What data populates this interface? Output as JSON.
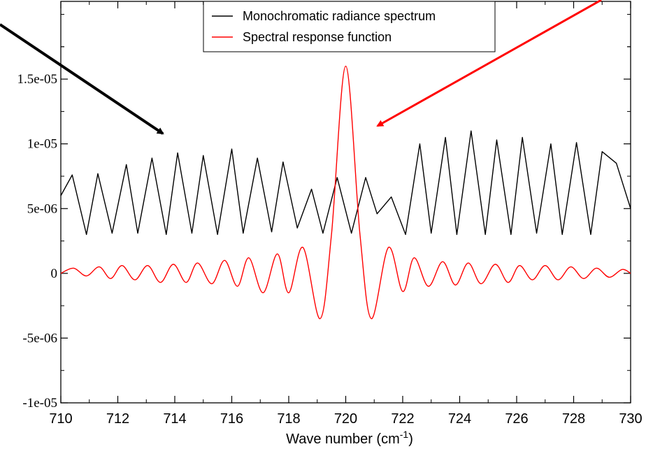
{
  "chart_data": {
    "type": "line",
    "title": "",
    "xlabel": "Wave number (cm",
    "xlabel_superscript": "-1",
    "xlabel_suffix": ")",
    "ylabel": "",
    "xlim": [
      710,
      730
    ],
    "ylim": [
      -1e-05,
      2.1e-05
    ],
    "x_ticks": [
      710,
      712,
      714,
      716,
      718,
      720,
      722,
      724,
      726,
      728,
      730
    ],
    "x_tick_labels": [
      "710",
      "712",
      "714",
      "716",
      "718",
      "720",
      "722",
      "724",
      "726",
      "728",
      "730"
    ],
    "y_ticks": [
      -1e-05,
      -5e-06,
      0,
      5e-06,
      1e-05,
      1.5e-05
    ],
    "y_tick_labels": [
      "-1e-05",
      "-5e-06",
      "0",
      "5e-06",
      "1e-05",
      "1.5e-05"
    ],
    "grid": false,
    "legend_position": "top-center",
    "series": [
      {
        "name": "Monochromatic radiance spectrum",
        "color": "#000000",
        "x": [
          710.0,
          710.4,
          710.9,
          711.3,
          711.8,
          712.3,
          712.7,
          713.2,
          713.7,
          714.1,
          714.6,
          715.0,
          715.5,
          716.0,
          716.4,
          716.9,
          717.4,
          717.8,
          718.3,
          718.8,
          719.2,
          719.7,
          720.2,
          720.7,
          721.1,
          721.6,
          722.1,
          722.6,
          723.0,
          723.5,
          723.9,
          724.4,
          724.9,
          725.3,
          725.8,
          726.2,
          726.7,
          727.2,
          727.6,
          728.1,
          728.6,
          729.0,
          729.5,
          730.0
        ],
        "values": [
          6e-06,
          7.6e-06,
          3e-06,
          7.7e-06,
          3.1e-06,
          8.4e-06,
          3.1e-06,
          8.9e-06,
          3e-06,
          9.3e-06,
          3.1e-06,
          9.1e-06,
          3e-06,
          9.6e-06,
          3.1e-06,
          8.9e-06,
          3.2e-06,
          8.6e-06,
          3.5e-06,
          6.5e-06,
          3.1e-06,
          7.4e-06,
          3.1e-06,
          7.4e-06,
          4.6e-06,
          5.9e-06,
          3e-06,
          1e-05,
          3.1e-06,
          1.05e-05,
          3e-06,
          1.1e-05,
          3e-06,
          1.03e-05,
          3e-06,
          1.05e-05,
          3.1e-06,
          1e-05,
          3e-06,
          1.01e-05,
          3e-06,
          9.4e-06,
          8.5e-06,
          5e-06
        ]
      },
      {
        "name": "Spectral response function",
        "color": "#ff0000",
        "x": [
          710.0,
          710.45,
          710.9,
          711.35,
          711.75,
          712.15,
          712.6,
          713.05,
          713.5,
          713.95,
          714.4,
          714.8,
          715.3,
          715.75,
          716.2,
          716.6,
          717.1,
          717.6,
          718.0,
          718.5,
          719.1,
          719.5,
          720.0,
          720.5,
          720.9,
          721.5,
          722.0,
          722.4,
          722.9,
          723.4,
          723.85,
          724.3,
          724.75,
          725.25,
          725.7,
          726.1,
          726.55,
          727.0,
          727.45,
          727.9,
          728.35,
          728.8,
          729.25,
          729.7,
          730.0
        ],
        "values": [
          0.0,
          4e-07,
          -2e-07,
          5e-07,
          -4e-07,
          6e-07,
          -5e-07,
          6e-07,
          -7e-07,
          7e-07,
          -7e-07,
          8e-07,
          -8e-07,
          1e-06,
          -1e-06,
          1.2e-06,
          -1.5e-06,
          1.5e-06,
          -1.5e-06,
          2e-06,
          -3.5e-06,
          3e-06,
          1.6e-05,
          3e-06,
          -3.5e-06,
          2e-06,
          -1.4e-06,
          1.2e-06,
          -1e-06,
          9e-07,
          -9e-07,
          8e-07,
          -8e-07,
          7e-07,
          -7e-07,
          6e-07,
          -5e-07,
          6e-07,
          -5e-07,
          5e-07,
          -4e-07,
          4e-07,
          -3e-07,
          3e-07,
          0.0
        ]
      }
    ],
    "annotations": [
      {
        "type": "arrow",
        "color": "#000000",
        "points_to": "Monochromatic radiance spectrum"
      },
      {
        "type": "arrow",
        "color": "#ff0000",
        "points_to": "Spectral response function"
      }
    ]
  }
}
